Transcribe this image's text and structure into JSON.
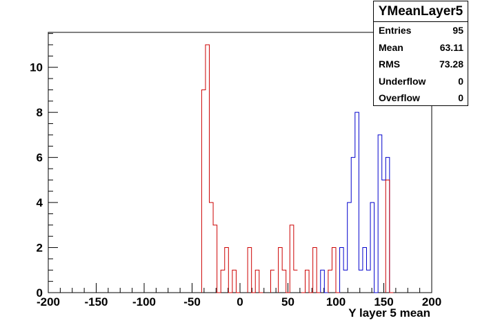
{
  "chart_data": {
    "type": "histogram",
    "xlabel": "Y layer 5 mean",
    "ylabel": "",
    "xlim": [
      -200,
      200
    ],
    "ylim": [
      0,
      11.55
    ],
    "x_ticks": [
      -200,
      -150,
      -100,
      -50,
      0,
      50,
      100,
      150,
      200
    ],
    "y_ticks": [
      0,
      2,
      4,
      6,
      8,
      10
    ],
    "bin_width": 4,
    "grid": false,
    "series": [
      {
        "color": "#0000cc",
        "bins": [
          {
            "x": 84,
            "y": 1
          },
          {
            "x": 88,
            "y": 0
          },
          {
            "x": 104,
            "y": 2
          },
          {
            "x": 108,
            "y": 1
          },
          {
            "x": 112,
            "y": 4
          },
          {
            "x": 116,
            "y": 6
          },
          {
            "x": 120,
            "y": 8
          },
          {
            "x": 124,
            "y": 1
          },
          {
            "x": 128,
            "y": 2
          },
          {
            "x": 132,
            "y": 1
          },
          {
            "x": 136,
            "y": 4
          },
          {
            "x": 140,
            "y": 0
          },
          {
            "x": 144,
            "y": 7
          },
          {
            "x": 148,
            "y": 5
          },
          {
            "x": 152,
            "y": 6
          },
          {
            "x": 156,
            "y": 0
          }
        ]
      },
      {
        "color": "#cc0000",
        "bins": [
          {
            "x": -40,
            "y": 9
          },
          {
            "x": -36,
            "y": 11
          },
          {
            "x": -32,
            "y": 4
          },
          {
            "x": -28,
            "y": 3
          },
          {
            "x": -24,
            "y": 0
          },
          {
            "x": -20,
            "y": 1
          },
          {
            "x": -16,
            "y": 2
          },
          {
            "x": -12,
            "y": 0
          },
          {
            "x": -8,
            "y": 1
          },
          {
            "x": -4,
            "y": 0
          },
          {
            "x": 8,
            "y": 2
          },
          {
            "x": 12,
            "y": 0
          },
          {
            "x": 16,
            "y": 1
          },
          {
            "x": 20,
            "y": 0
          },
          {
            "x": 32,
            "y": 1
          },
          {
            "x": 40,
            "y": 2
          },
          {
            "x": 44,
            "y": 1
          },
          {
            "x": 48,
            "y": 0
          },
          {
            "x": 52,
            "y": 3
          },
          {
            "x": 56,
            "y": 1
          },
          {
            "x": 64,
            "y": 0
          },
          {
            "x": 68,
            "y": 1
          },
          {
            "x": 72,
            "y": 0
          },
          {
            "x": 76,
            "y": 2
          },
          {
            "x": 80,
            "y": 0
          },
          {
            "x": 92,
            "y": 1
          },
          {
            "x": 96,
            "y": 2
          },
          {
            "x": 100,
            "y": 0
          },
          {
            "x": 152,
            "y": 5
          },
          {
            "x": 156,
            "y": 0
          }
        ]
      }
    ]
  },
  "stats": {
    "title": "YMeanLayer5",
    "rows": [
      {
        "label": "Entries",
        "value": "95"
      },
      {
        "label": "Mean",
        "value": "63.11"
      },
      {
        "label": "RMS",
        "value": "73.28"
      },
      {
        "label": "Underflow",
        "value": "0"
      },
      {
        "label": "Overflow",
        "value": "0"
      }
    ]
  }
}
